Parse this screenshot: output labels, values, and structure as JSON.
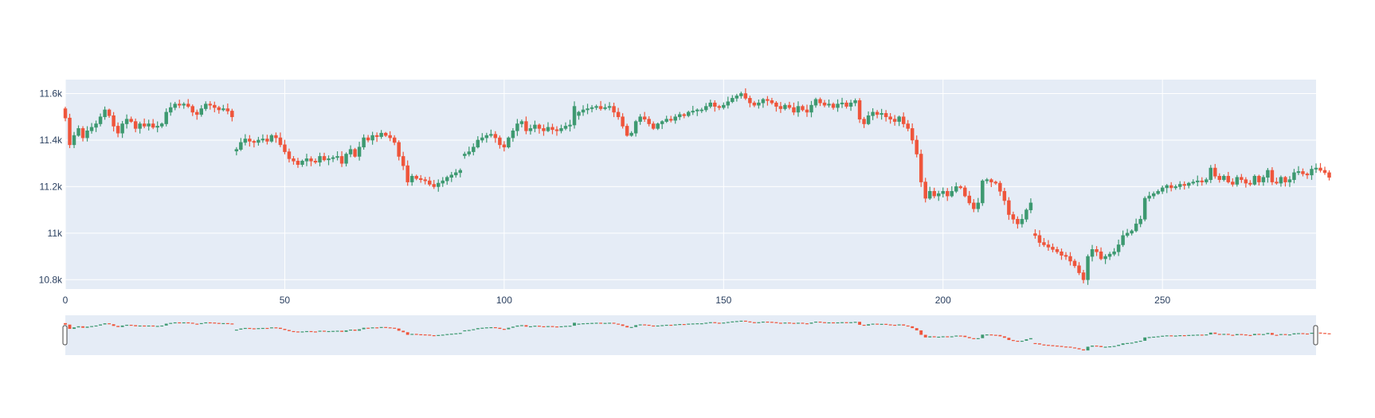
{
  "colors": {
    "background": "#ffffff",
    "plot_bg": "#e5ecf6",
    "grid": "#ffffff",
    "increasing": "#3d9970",
    "decreasing": "#ef553b",
    "tick_text": "#2a3f5f",
    "rangeslider_handle": "#ffffff",
    "rangeslider_handle_border": "#444444"
  },
  "chart_data": {
    "type": "candlestick",
    "title": "",
    "xlabel": "",
    "ylabel": "",
    "xlim": [
      0,
      285
    ],
    "ylim": [
      10760,
      11660
    ],
    "grid": true,
    "legend": false,
    "rangeslider": true,
    "x_ticks": [
      "0",
      "50",
      "100",
      "150",
      "200",
      "250"
    ],
    "x_tick_values": [
      0,
      50,
      100,
      150,
      200,
      250
    ],
    "y_ticks": [
      "10.8k",
      "11k",
      "11.2k",
      "11.4k",
      "11.6k"
    ],
    "y_tick_values": [
      10800,
      11000,
      11200,
      11400,
      11600
    ],
    "gaps": [
      [
        38,
        39
      ],
      [
        90,
        91
      ],
      [
        116,
        117
      ],
      [
        220,
        221
      ]
    ],
    "close": [
      11495,
      11380,
      11420,
      11450,
      11410,
      11440,
      11455,
      11470,
      11500,
      11530,
      11505,
      11460,
      11430,
      11470,
      11490,
      11480,
      11450,
      11470,
      11460,
      11470,
      11455,
      11460,
      11470,
      11520,
      11540,
      11555,
      11550,
      11555,
      11545,
      11520,
      11510,
      11535,
      11555,
      11550,
      11540,
      11530,
      11535,
      11525,
      11500,
      11360,
      11390,
      11405,
      11395,
      11390,
      11400,
      11405,
      11395,
      11420,
      11410,
      11380,
      11350,
      11320,
      11310,
      11295,
      11310,
      11320,
      11310,
      11305,
      11330,
      11315,
      11320,
      11325,
      11330,
      11300,
      11340,
      11360,
      11330,
      11370,
      11410,
      11400,
      11420,
      11415,
      11430,
      11420,
      11410,
      11390,
      11330,
      11290,
      11220,
      11245,
      11235,
      11230,
      11225,
      11210,
      11200,
      11215,
      11225,
      11240,
      11250,
      11260,
      11270,
      11340,
      11350,
      11370,
      11400,
      11410,
      11420,
      11425,
      11410,
      11380,
      11370,
      11410,
      11440,
      11470,
      11480,
      11440,
      11450,
      11465,
      11450,
      11440,
      11455,
      11445,
      11440,
      11450,
      11460,
      11465,
      11545,
      11520,
      11530,
      11535,
      11540,
      11545,
      11535,
      11540,
      11545,
      11520,
      11500,
      11460,
      11420,
      11430,
      11480,
      11500,
      11490,
      11470,
      11450,
      11470,
      11480,
      11490,
      11485,
      11500,
      11510,
      11505,
      11520,
      11525,
      11530,
      11530,
      11545,
      11560,
      11545,
      11540,
      11550,
      11565,
      11580,
      11590,
      11600,
      11580,
      11560,
      11550,
      11560,
      11575,
      11570,
      11560,
      11545,
      11535,
      11550,
      11540,
      11520,
      11545,
      11530,
      11520,
      11550,
      11575,
      11560,
      11550,
      11555,
      11540,
      11555,
      11560,
      11545,
      11560,
      11570,
      11490,
      11470,
      11505,
      11520,
      11510,
      11515,
      11500,
      11490,
      11480,
      11500,
      11470,
      11450,
      11400,
      11340,
      11220,
      11150,
      11180,
      11160,
      11170,
      11180,
      11160,
      11180,
      11200,
      11195,
      11160,
      11130,
      11105,
      11130,
      11225,
      11230,
      11220,
      11215,
      11180,
      11140,
      11080,
      11060,
      11040,
      11060,
      11100,
      11130,
      10990,
      10960,
      10950,
      10940,
      10930,
      10920,
      10905,
      10900,
      10880,
      10860,
      10830,
      10800,
      10900,
      10930,
      10920,
      10890,
      10900,
      10910,
      10920,
      10950,
      10990,
      11000,
      11010,
      11040,
      11060,
      11150,
      11160,
      11170,
      11180,
      11195,
      11205,
      11195,
      11200,
      11210,
      11205,
      11215,
      11220,
      11225,
      11220,
      11230,
      11280,
      11245,
      11230,
      11245,
      11220,
      11210,
      11240,
      11230,
      11215,
      11210,
      11245,
      11220,
      11240,
      11270,
      11220,
      11215,
      11240,
      11220,
      11230,
      11260,
      11265,
      11255,
      11250,
      11275,
      11280,
      11270,
      11260,
      11240
    ]
  }
}
